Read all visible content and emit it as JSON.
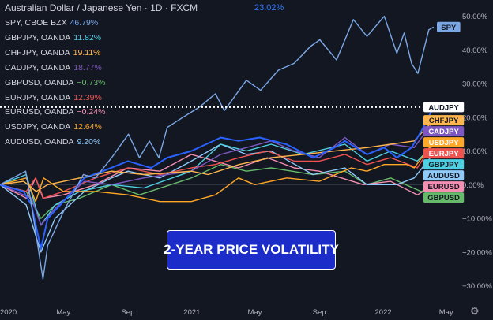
{
  "header": {
    "title": "Australian Dollar / Japanese Yen · 1D · FXCM",
    "value": "23.02%",
    "value_color": "#3179f5"
  },
  "legend": [
    {
      "name": "SPY, CBOE BZX",
      "value": "46.79%",
      "color": "#7ba7e5"
    },
    {
      "name": "GBPJPY, OANDA",
      "value": "11.82%",
      "color": "#4dd0e1"
    },
    {
      "name": "CHFJPY, OANDA",
      "value": "19.11%",
      "color": "#ffb74d"
    },
    {
      "name": "CADJPY, OANDA",
      "value": "18.77%",
      "color": "#7e57c2"
    },
    {
      "name": "GBPUSD, OANDA",
      "value": "−0.73%",
      "color": "#66bb6a"
    },
    {
      "name": "EURJPY, OANDA",
      "value": "12.39%",
      "color": "#ef5350"
    },
    {
      "name": "EURUSD, OANDA",
      "value": "−0.24%",
      "color": "#f48fb1"
    },
    {
      "name": "USDJPY, OANDA",
      "value": "12.64%",
      "color": "#ffa726"
    },
    {
      "name": "AUDUSD, OANDA",
      "value": "9.20%",
      "color": "#90caf9"
    }
  ],
  "banner": "2-YEAR PRICE VOLATILITY",
  "icons": {
    "settings": "gear-icon"
  },
  "chart_data": {
    "type": "line",
    "title": "Australian Dollar / Japanese Yen · 1D · FXCM",
    "x_ticks": [
      "2020",
      "May",
      "Sep",
      "2021",
      "May",
      "Sep",
      "2022",
      "May"
    ],
    "y_ticks": [
      "50.00%",
      "40.00%",
      "30.00%",
      "20.00%",
      "10.00%",
      "0.00%",
      "−10.00%",
      "−20.00%",
      "−30.00%"
    ],
    "ylim": [
      -35,
      52
    ],
    "xlim": [
      "2020-01-01",
      "2022-05-15"
    ],
    "y_unit": "%",
    "grid": false,
    "legend_position": "top-left",
    "reference_line": {
      "value": 23.02,
      "color": "#ffffff",
      "style": "dotted"
    },
    "series": [
      {
        "name": "SPY",
        "symbol": "SPY",
        "color": "#7ba7e5",
        "label_text": "#131722",
        "last": 46.79,
        "points": [
          [
            "2020-01-01",
            0
          ],
          [
            "2020-02-19",
            4
          ],
          [
            "2020-03-01",
            -6
          ],
          [
            "2020-03-23",
            -28
          ],
          [
            "2020-04-01",
            -18
          ],
          [
            "2020-05-01",
            -8
          ],
          [
            "2020-06-08",
            3
          ],
          [
            "2020-07-01",
            2
          ],
          [
            "2020-08-01",
            8
          ],
          [
            "2020-09-02",
            15
          ],
          [
            "2020-09-23",
            8
          ],
          [
            "2020-10-12",
            13
          ],
          [
            "2020-10-30",
            8
          ],
          [
            "2020-11-15",
            17
          ],
          [
            "2020-12-15",
            20
          ],
          [
            "2021-01-15",
            23
          ],
          [
            "2021-02-15",
            27
          ],
          [
            "2021-03-04",
            22
          ],
          [
            "2021-04-15",
            31
          ],
          [
            "2021-05-12",
            28
          ],
          [
            "2021-06-15",
            34
          ],
          [
            "2021-07-15",
            36
          ],
          [
            "2021-08-15",
            41
          ],
          [
            "2021-09-02",
            43
          ],
          [
            "2021-10-04",
            37
          ],
          [
            "2021-11-05",
            49
          ],
          [
            "2021-12-01",
            44
          ],
          [
            "2022-01-03",
            50
          ],
          [
            "2022-01-27",
            39
          ],
          [
            "2022-02-10",
            45
          ],
          [
            "2022-02-24",
            36
          ],
          [
            "2022-03-08",
            33
          ],
          [
            "2022-03-29",
            46
          ],
          [
            "2022-04-07",
            46.79
          ]
        ]
      },
      {
        "name": "AUDJPY, FXCM",
        "symbol": "AUDJPY",
        "color": "#2962ff",
        "label_text": "#131722",
        "label_bg": "#ffffff",
        "last": 23.02,
        "points": [
          [
            "2020-01-01",
            0
          ],
          [
            "2020-02-15",
            -2
          ],
          [
            "2020-03-01",
            -6
          ],
          [
            "2020-03-19",
            -19
          ],
          [
            "2020-04-01",
            -10
          ],
          [
            "2020-05-01",
            -5
          ],
          [
            "2020-06-10",
            2
          ],
          [
            "2020-07-15",
            4
          ],
          [
            "2020-09-01",
            7
          ],
          [
            "2020-10-15",
            5
          ],
          [
            "2020-11-15",
            8
          ],
          [
            "2020-12-31",
            10
          ],
          [
            "2021-02-25",
            14
          ],
          [
            "2021-03-31",
            13
          ],
          [
            "2021-05-10",
            14
          ],
          [
            "2021-06-30",
            12
          ],
          [
            "2021-08-20",
            8
          ],
          [
            "2021-09-30",
            11
          ],
          [
            "2021-10-20",
            13
          ],
          [
            "2021-12-01",
            9
          ],
          [
            "2022-01-03",
            11
          ],
          [
            "2022-01-27",
            8
          ],
          [
            "2022-02-24",
            11
          ],
          [
            "2022-03-15",
            16
          ],
          [
            "2022-04-07",
            23.02
          ]
        ]
      },
      {
        "name": "CHFJPY, OANDA",
        "symbol": "CHFJPY",
        "color": "#ffb74d",
        "label_text": "#131722",
        "last": 19.11,
        "points": [
          [
            "2020-01-01",
            0
          ],
          [
            "2020-02-15",
            1
          ],
          [
            "2020-03-10",
            -2
          ],
          [
            "2020-04-01",
            0
          ],
          [
            "2020-06-01",
            2
          ],
          [
            "2020-08-01",
            4
          ],
          [
            "2020-10-01",
            3
          ],
          [
            "2020-12-31",
            4
          ],
          [
            "2021-02-01",
            3
          ],
          [
            "2021-04-01",
            6
          ],
          [
            "2021-06-01",
            8
          ],
          [
            "2021-08-01",
            9
          ],
          [
            "2021-10-01",
            10
          ],
          [
            "2021-12-01",
            11
          ],
          [
            "2022-01-15",
            12
          ],
          [
            "2022-03-01",
            13
          ],
          [
            "2022-04-07",
            19.11
          ]
        ]
      },
      {
        "name": "CADJPY, OANDA",
        "symbol": "CADJPY",
        "color": "#7e57c2",
        "label_text": "#ffffff",
        "last": 18.77,
        "points": [
          [
            "2020-01-01",
            0
          ],
          [
            "2020-03-01",
            -4
          ],
          [
            "2020-03-19",
            -12
          ],
          [
            "2020-04-15",
            -7
          ],
          [
            "2020-06-10",
            1
          ],
          [
            "2020-08-01",
            0
          ],
          [
            "2020-10-01",
            2
          ],
          [
            "2020-12-31",
            4
          ],
          [
            "2021-02-25",
            9
          ],
          [
            "2021-04-15",
            11
          ],
          [
            "2021-06-01",
            13
          ],
          [
            "2021-07-15",
            10
          ],
          [
            "2021-09-01",
            8
          ],
          [
            "2021-10-20",
            14
          ],
          [
            "2021-12-01",
            9
          ],
          [
            "2022-01-15",
            12
          ],
          [
            "2022-03-01",
            11
          ],
          [
            "2022-04-07",
            18.77
          ]
        ]
      },
      {
        "name": "USDJPY, OANDA",
        "symbol": "USDJPY",
        "color": "#ffa726",
        "label_text": "#ffffff",
        "last": 12.64,
        "points": [
          [
            "2020-01-01",
            0
          ],
          [
            "2020-02-20",
            2
          ],
          [
            "2020-03-09",
            -5
          ],
          [
            "2020-03-24",
            2
          ],
          [
            "2020-05-01",
            -2
          ],
          [
            "2020-07-01",
            -2
          ],
          [
            "2020-09-01",
            -3
          ],
          [
            "2020-11-01",
            -5
          ],
          [
            "2020-12-31",
            -5
          ],
          [
            "2021-02-15",
            -3
          ],
          [
            "2021-03-31",
            2
          ],
          [
            "2021-05-01",
            0
          ],
          [
            "2021-07-01",
            2
          ],
          [
            "2021-09-01",
            1
          ],
          [
            "2021-11-01",
            5
          ],
          [
            "2021-12-01",
            4
          ],
          [
            "2022-01-03",
            6
          ],
          [
            "2022-02-15",
            6
          ],
          [
            "2022-03-01",
            5
          ],
          [
            "2022-04-07",
            12.64
          ]
        ]
      },
      {
        "name": "EURJPY, OANDA",
        "symbol": "EURJPY",
        "color": "#ef5350",
        "label_text": "#ffffff",
        "last": 12.39,
        "points": [
          [
            "2020-01-01",
            0
          ],
          [
            "2020-02-20",
            -2
          ],
          [
            "2020-03-09",
            2
          ],
          [
            "2020-03-24",
            -4
          ],
          [
            "2020-05-01",
            -2
          ],
          [
            "2020-07-01",
            2
          ],
          [
            "2020-09-01",
            5
          ],
          [
            "2020-11-01",
            3
          ],
          [
            "2020-12-31",
            5
          ],
          [
            "2021-02-15",
            6
          ],
          [
            "2021-04-01",
            8
          ],
          [
            "2021-05-25",
            10
          ],
          [
            "2021-07-15",
            7
          ],
          [
            "2021-09-01",
            7
          ],
          [
            "2021-10-20",
            9
          ],
          [
            "2021-12-01",
            6
          ],
          [
            "2022-01-15",
            8
          ],
          [
            "2022-03-07",
            5
          ],
          [
            "2022-04-07",
            12.39
          ]
        ]
      },
      {
        "name": "GBPJPY, OANDA",
        "symbol": "GBPJPY",
        "color": "#4dd0e1",
        "label_text": "#131722",
        "last": 11.82,
        "points": [
          [
            "2020-01-01",
            0
          ],
          [
            "2020-02-20",
            3
          ],
          [
            "2020-03-19",
            -12
          ],
          [
            "2020-04-15",
            -6
          ],
          [
            "2020-06-01",
            -2
          ],
          [
            "2020-08-01",
            0
          ],
          [
            "2020-10-01",
            -1
          ],
          [
            "2020-12-31",
            4
          ],
          [
            "2021-02-25",
            12
          ],
          [
            "2021-04-15",
            10
          ],
          [
            "2021-06-01",
            12
          ],
          [
            "2021-08-01",
            9
          ],
          [
            "2021-10-20",
            12
          ],
          [
            "2021-12-01",
            7
          ],
          [
            "2022-01-15",
            10
          ],
          [
            "2022-03-07",
            7
          ],
          [
            "2022-04-07",
            11.82
          ]
        ]
      },
      {
        "name": "AUDUSD, OANDA",
        "symbol": "AUDUSD",
        "color": "#90caf9",
        "label_text": "#131722",
        "last": 9.2,
        "points": [
          [
            "2020-01-01",
            0
          ],
          [
            "2020-02-20",
            -6
          ],
          [
            "2020-03-19",
            -20
          ],
          [
            "2020-04-15",
            -10
          ],
          [
            "2020-06-10",
            -2
          ],
          [
            "2020-08-01",
            2
          ],
          [
            "2020-09-01",
            4
          ],
          [
            "2020-11-01",
            2
          ],
          [
            "2020-12-31",
            7
          ],
          [
            "2021-02-25",
            12
          ],
          [
            "2021-04-15",
            9
          ],
          [
            "2021-06-01",
            10
          ],
          [
            "2021-08-20",
            3
          ],
          [
            "2021-10-20",
            5
          ],
          [
            "2021-12-01",
            0
          ],
          [
            "2022-01-27",
            0
          ],
          [
            "2022-03-01",
            2
          ],
          [
            "2022-04-07",
            9.2
          ]
        ]
      },
      {
        "name": "EURUSD, OANDA",
        "symbol": "EURUSD",
        "color": "#f48fb1",
        "label_text": "#131722",
        "last": -0.24,
        "points": [
          [
            "2020-01-01",
            0
          ],
          [
            "2020-02-20",
            -4
          ],
          [
            "2020-03-09",
            2
          ],
          [
            "2020-03-23",
            -4
          ],
          [
            "2020-05-01",
            -3
          ],
          [
            "2020-07-01",
            0
          ],
          [
            "2020-09-01",
            5
          ],
          [
            "2020-11-01",
            4
          ],
          [
            "2020-12-31",
            9
          ],
          [
            "2021-03-31",
            5
          ],
          [
            "2021-05-25",
            8
          ],
          [
            "2021-07-15",
            5
          ],
          [
            "2021-09-01",
            4
          ],
          [
            "2021-11-24",
            0
          ],
          [
            "2022-01-15",
            1
          ],
          [
            "2022-03-07",
            -3
          ],
          [
            "2022-04-07",
            -0.24
          ]
        ]
      },
      {
        "name": "GBPUSD, OANDA",
        "symbol": "GBPUSD",
        "color": "#66bb6a",
        "label_text": "#131722",
        "last": -0.73,
        "points": [
          [
            "2020-01-01",
            0
          ],
          [
            "2020-02-20",
            -2
          ],
          [
            "2020-03-19",
            -10
          ],
          [
            "2020-04-15",
            -6
          ],
          [
            "2020-06-01",
            -4
          ],
          [
            "2020-08-01",
            0
          ],
          [
            "2020-09-23",
            -3
          ],
          [
            "2020-12-31",
            2
          ],
          [
            "2021-02-25",
            6
          ],
          [
            "2021-04-15",
            4
          ],
          [
            "2021-06-01",
            5
          ],
          [
            "2021-08-20",
            3
          ],
          [
            "2021-10-20",
            4
          ],
          [
            "2021-12-01",
            0
          ],
          [
            "2022-01-15",
            2
          ],
          [
            "2022-03-14",
            -2
          ],
          [
            "2022-04-07",
            -0.73
          ]
        ]
      }
    ]
  }
}
